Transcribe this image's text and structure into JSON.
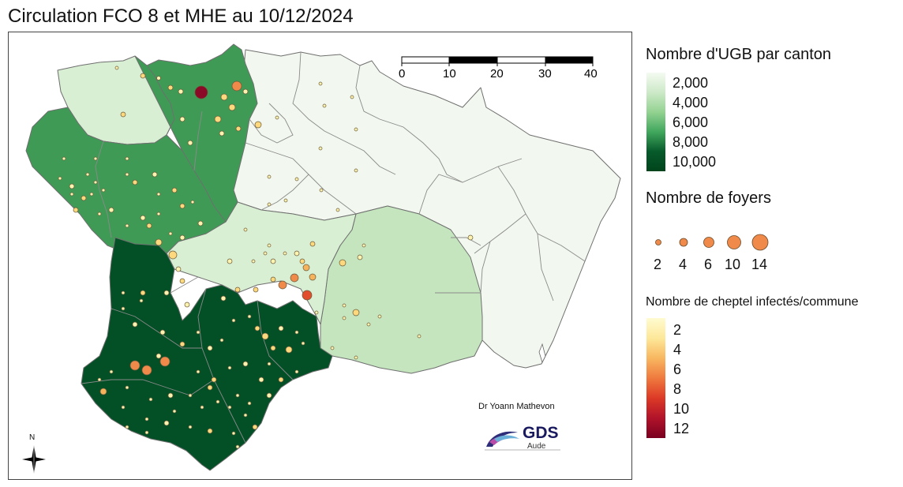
{
  "title": "Circulation FCO 8 et MHE au 10/12/2024",
  "scale_bar": {
    "ticks": [
      "0",
      "10",
      "20",
      "30",
      "40 km"
    ]
  },
  "legend_ugb": {
    "title": "Nombre d'UGB par canton",
    "labels": [
      "2,000",
      "4,000",
      "6,000",
      "8,000",
      "10,000"
    ],
    "colors": [
      "#f4faf1",
      "#cde9c8",
      "#93d291",
      "#41a75d",
      "#00441b"
    ]
  },
  "legend_foyers": {
    "title": "Nombre de foyers",
    "labels": [
      "2",
      "4",
      "6",
      "10",
      "14"
    ],
    "color": "#ef8a4a"
  },
  "legend_cheptel": {
    "title": "Nombre de cheptel infectés/commune",
    "labels": [
      "2",
      "4",
      "6",
      "8",
      "10",
      "12"
    ]
  },
  "credit": "Dr Yoann Mathevon",
  "logo": {
    "name": "GDS",
    "sub": "Aude"
  },
  "north_label": "N",
  "region_colors": {
    "very_light": "#f2f8ef",
    "light": "#d9efd3",
    "mid_light": "#c5e5bf",
    "medium": "#3f9a55",
    "medium2": "#359050",
    "dark": "#034f26",
    "border": "#6f6f6f"
  },
  "point_colors": {
    "c2": "#fff3b0",
    "c4": "#fdd87c",
    "c6": "#f6b35c",
    "c8": "#ef8a4a",
    "c10": "#e04e2e",
    "c12": "#8b0a28"
  }
}
